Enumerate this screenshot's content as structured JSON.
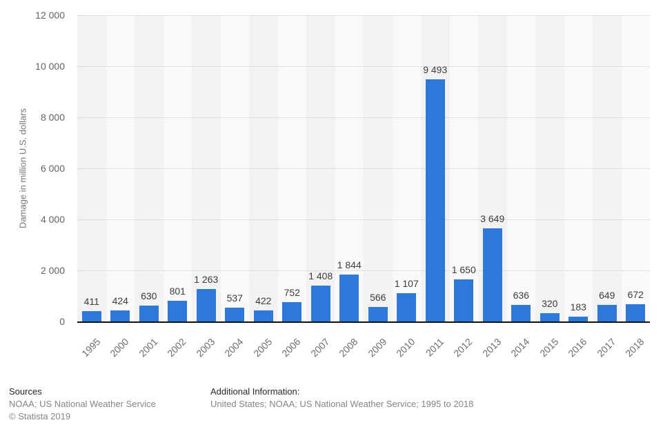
{
  "chart_data": {
    "type": "bar",
    "title": "",
    "xlabel": "",
    "ylabel": "Damage in million U.S. dollars",
    "ylim": [
      0,
      12000
    ],
    "ytick_values": [
      0,
      2000,
      4000,
      6000,
      8000,
      10000,
      12000
    ],
    "ytick_labels": [
      "0",
      "2 000",
      "4 000",
      "6 000",
      "8 000",
      "10 000",
      "12 000"
    ],
    "grid": true,
    "legend": false,
    "bar_color": "#2e78d9",
    "categories": [
      "1995",
      "2000",
      "2001",
      "2002",
      "2003",
      "2004",
      "2005",
      "2006",
      "2007",
      "2008",
      "2009",
      "2010",
      "2011",
      "2012",
      "2013",
      "2014",
      "2015",
      "2016",
      "2017",
      "2018"
    ],
    "values": [
      411,
      424,
      630,
      801,
      1263,
      537,
      422,
      752,
      1408,
      1844,
      566,
      1107,
      9493,
      1650,
      3649,
      636,
      320,
      183,
      649,
      672
    ],
    "value_labels": [
      "411",
      "424",
      "630",
      "801",
      "1 263",
      "537",
      "422",
      "752",
      "1 408",
      "1 844",
      "566",
      "1 107",
      "9 493",
      "1 650",
      "3 649",
      "636",
      "320",
      "183",
      "649",
      "672"
    ]
  },
  "footer": {
    "sources_heading": "Sources",
    "sources_line": "NOAA; US National Weather Service",
    "copyright": "© Statista 2019",
    "additional_heading": "Additional Information:",
    "additional_line": "United States; NOAA; US National Weather Service; 1995 to 2018"
  }
}
